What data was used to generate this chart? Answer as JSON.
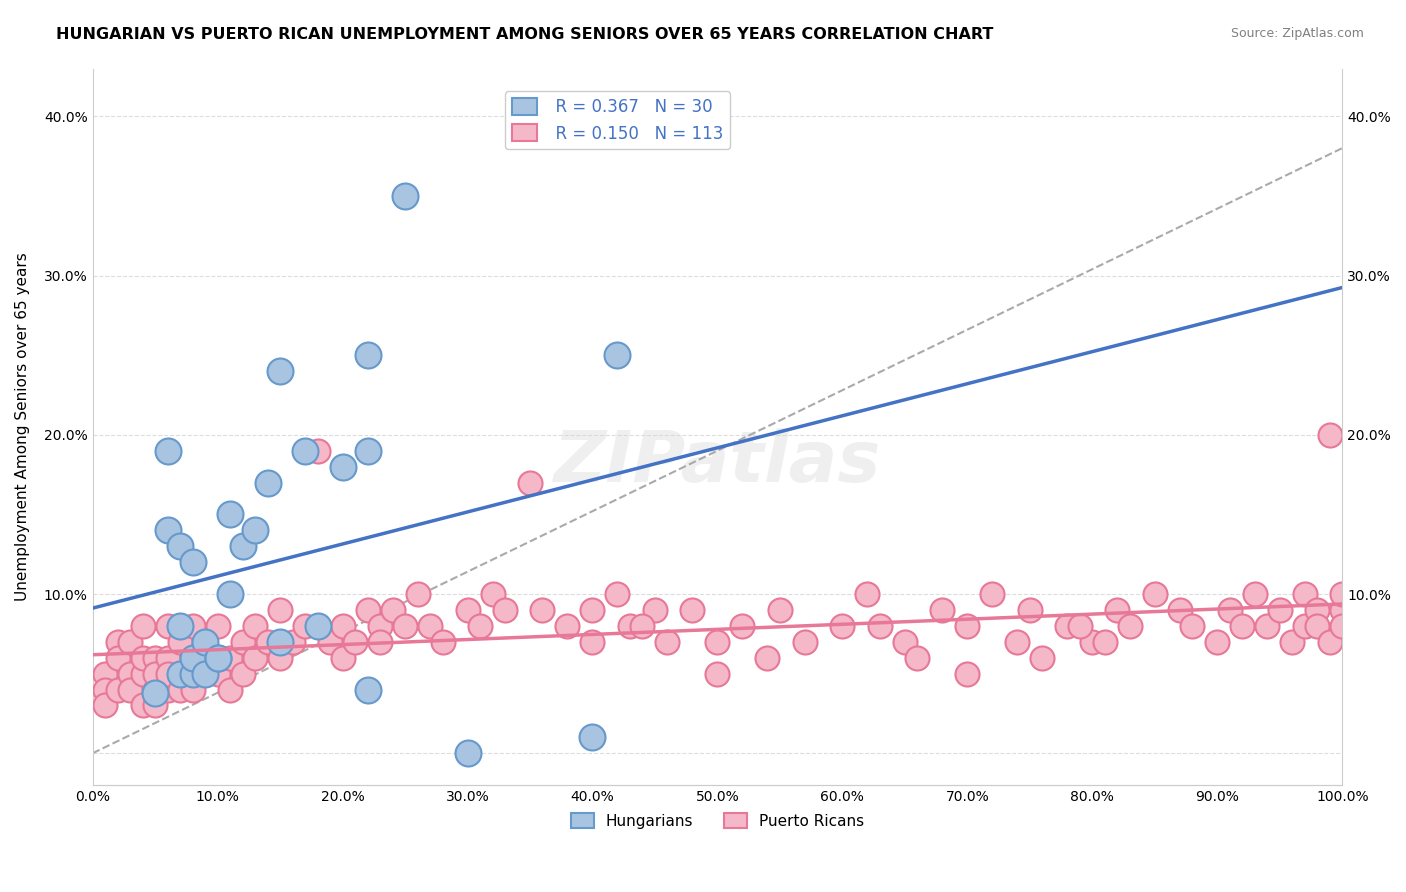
{
  "title": "HUNGARIAN VS PUERTO RICAN UNEMPLOYMENT AMONG SENIORS OVER 65 YEARS CORRELATION CHART",
  "source": "Source: ZipAtlas.com",
  "ylabel": "Unemployment Among Seniors over 65 years",
  "xlabel": "",
  "xlim": [
    0,
    1.0
  ],
  "ylim": [
    -0.02,
    0.43
  ],
  "xticks": [
    0.0,
    0.1,
    0.2,
    0.3,
    0.4,
    0.5,
    0.6,
    0.7,
    0.8,
    0.9,
    1.0
  ],
  "xticklabels": [
    "0.0%",
    "10.0%",
    "20.0%",
    "30.0%",
    "40.0%",
    "50.0%",
    "60.0%",
    "70.0%",
    "80.0%",
    "90.0%",
    "100.0%"
  ],
  "yticks": [
    0.0,
    0.1,
    0.2,
    0.3,
    0.4
  ],
  "yticklabels": [
    "",
    "10.0%",
    "20.0%",
    "30.0%",
    "40.0%"
  ],
  "hungarian_color": "#a8c4e0",
  "hungarian_edge_color": "#6699cc",
  "puerto_rican_color": "#f4b8c8",
  "puerto_rican_edge_color": "#e87898",
  "hungarian_line_color": "#4472c4",
  "puerto_rican_line_color": "#e87898",
  "dashed_line_color": "#aaaaaa",
  "R_hungarian": 0.367,
  "N_hungarian": 30,
  "R_puerto_rican": 0.15,
  "N_puerto_rican": 113,
  "legend_label_hungarian": "Hungarians",
  "legend_label_puerto_rican": "Puerto Ricans",
  "watermark": "ZIPatlas",
  "background_color": "#ffffff",
  "grid_color": "#dddddd",
  "hungarian_x": [
    0.05,
    0.06,
    0.06,
    0.07,
    0.07,
    0.07,
    0.08,
    0.08,
    0.08,
    0.09,
    0.09,
    0.1,
    0.1,
    0.11,
    0.11,
    0.12,
    0.13,
    0.14,
    0.15,
    0.17,
    0.2,
    0.22,
    0.22,
    0.25,
    0.3,
    0.4,
    0.42,
    0.15,
    0.22,
    0.18
  ],
  "hungarian_y": [
    0.038,
    0.14,
    0.19,
    0.08,
    0.05,
    0.13,
    0.05,
    0.12,
    0.06,
    0.07,
    0.05,
    0.06,
    0.06,
    0.1,
    0.15,
    0.13,
    0.14,
    0.17,
    0.24,
    0.19,
    0.18,
    0.25,
    0.19,
    0.35,
    0.0,
    0.01,
    0.25,
    0.07,
    0.04,
    0.08
  ],
  "puerto_rican_x": [
    0.01,
    0.01,
    0.01,
    0.02,
    0.02,
    0.02,
    0.03,
    0.03,
    0.03,
    0.04,
    0.04,
    0.04,
    0.04,
    0.05,
    0.05,
    0.05,
    0.05,
    0.06,
    0.06,
    0.06,
    0.06,
    0.07,
    0.07,
    0.07,
    0.08,
    0.08,
    0.08,
    0.09,
    0.09,
    0.1,
    0.1,
    0.11,
    0.11,
    0.12,
    0.12,
    0.13,
    0.13,
    0.14,
    0.15,
    0.15,
    0.16,
    0.17,
    0.18,
    0.19,
    0.2,
    0.2,
    0.21,
    0.22,
    0.23,
    0.23,
    0.24,
    0.25,
    0.26,
    0.27,
    0.28,
    0.3,
    0.31,
    0.32,
    0.33,
    0.35,
    0.36,
    0.38,
    0.4,
    0.4,
    0.42,
    0.43,
    0.45,
    0.5,
    0.52,
    0.55,
    0.6,
    0.62,
    0.65,
    0.68,
    0.7,
    0.72,
    0.75,
    0.78,
    0.8,
    0.82,
    0.83,
    0.85,
    0.87,
    0.88,
    0.9,
    0.91,
    0.92,
    0.93,
    0.94,
    0.95,
    0.96,
    0.97,
    0.97,
    0.98,
    0.98,
    0.99,
    0.99,
    1.0,
    1.0,
    1.0,
    0.44,
    0.46,
    0.48,
    0.5,
    0.54,
    0.57,
    0.63,
    0.66,
    0.7,
    0.74,
    0.76,
    0.79,
    0.81
  ],
  "puerto_rican_y": [
    0.05,
    0.04,
    0.03,
    0.07,
    0.04,
    0.06,
    0.05,
    0.04,
    0.07,
    0.05,
    0.03,
    0.06,
    0.08,
    0.04,
    0.06,
    0.03,
    0.05,
    0.04,
    0.06,
    0.05,
    0.08,
    0.04,
    0.07,
    0.05,
    0.06,
    0.04,
    0.08,
    0.05,
    0.07,
    0.05,
    0.08,
    0.06,
    0.04,
    0.07,
    0.05,
    0.06,
    0.08,
    0.07,
    0.06,
    0.09,
    0.07,
    0.08,
    0.19,
    0.07,
    0.08,
    0.06,
    0.07,
    0.09,
    0.08,
    0.07,
    0.09,
    0.08,
    0.1,
    0.08,
    0.07,
    0.09,
    0.08,
    0.1,
    0.09,
    0.17,
    0.09,
    0.08,
    0.07,
    0.09,
    0.1,
    0.08,
    0.09,
    0.07,
    0.08,
    0.09,
    0.08,
    0.1,
    0.07,
    0.09,
    0.08,
    0.1,
    0.09,
    0.08,
    0.07,
    0.09,
    0.08,
    0.1,
    0.09,
    0.08,
    0.07,
    0.09,
    0.08,
    0.1,
    0.08,
    0.09,
    0.07,
    0.1,
    0.08,
    0.09,
    0.08,
    0.07,
    0.2,
    0.09,
    0.1,
    0.08,
    0.08,
    0.07,
    0.09,
    0.05,
    0.06,
    0.07,
    0.08,
    0.06,
    0.05,
    0.07,
    0.06,
    0.08,
    0.07
  ]
}
